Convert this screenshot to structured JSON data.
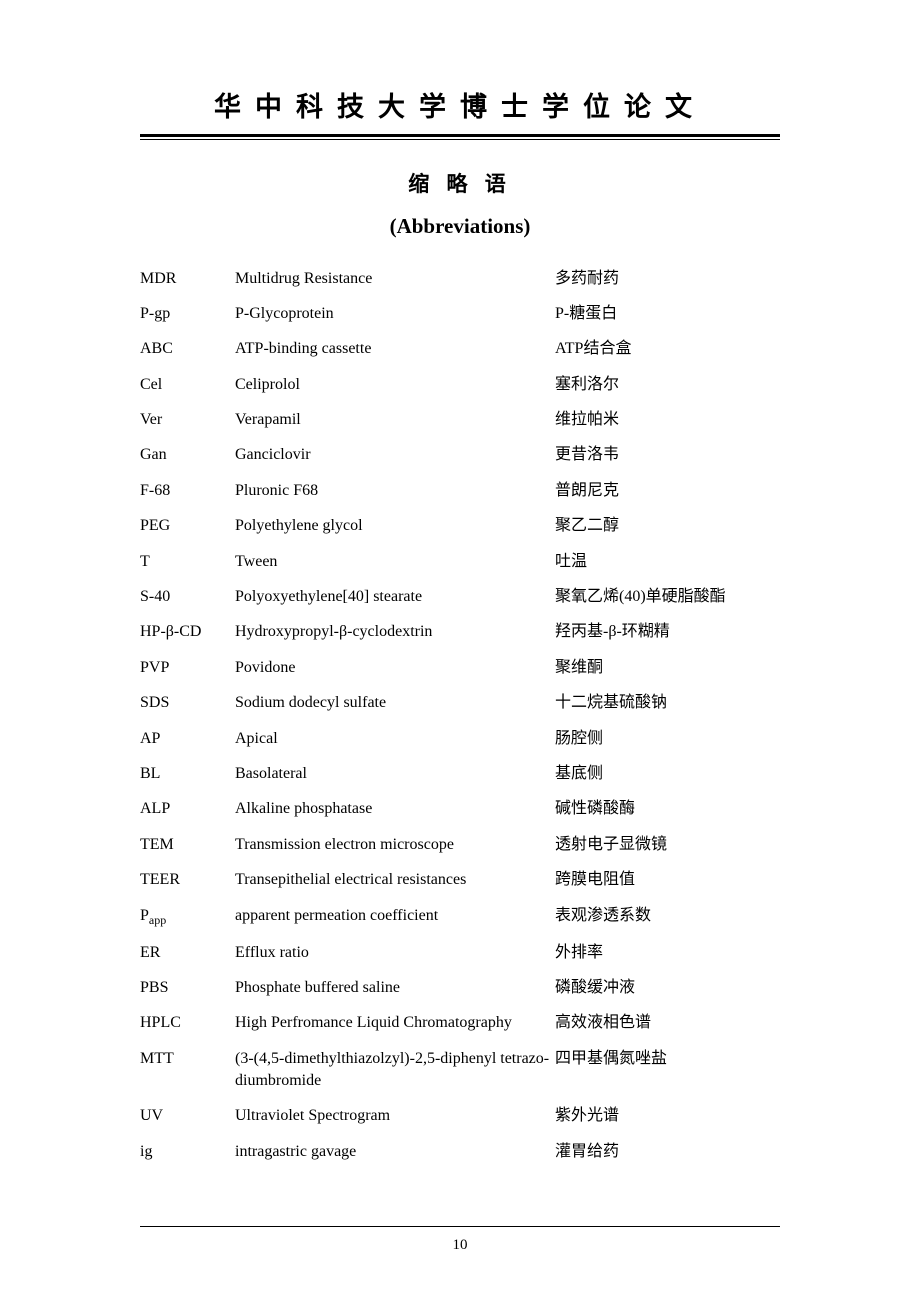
{
  "header": {
    "title": "华中科技大学博士学位论文"
  },
  "section": {
    "title_cn": "缩 略 语",
    "title_en": "(Abbreviations)"
  },
  "abbreviations": [
    {
      "abbr": "MDR",
      "en": "Multidrug Resistance",
      "cn": "多药耐药"
    },
    {
      "abbr": "P-gp",
      "en": "P-Glycoprotein",
      "cn": "P-糖蛋白"
    },
    {
      "abbr": "ABC",
      "en": "ATP-binding cassette",
      "cn": "ATP结合盒"
    },
    {
      "abbr": "Cel",
      "en": "Celiprolol",
      "cn": "塞利洛尔"
    },
    {
      "abbr": "Ver",
      "en": "Verapamil",
      "cn": "维拉帕米"
    },
    {
      "abbr": "Gan",
      "en": "Ganciclovir",
      "cn": "更昔洛韦"
    },
    {
      "abbr": "F-68",
      "en": "Pluronic F68",
      "cn": "普朗尼克"
    },
    {
      "abbr": "PEG",
      "en": "Polyethylene glycol",
      "cn": "聚乙二醇"
    },
    {
      "abbr": "T",
      "en": "Tween",
      "cn": "吐温"
    },
    {
      "abbr": "S-40",
      "en": "Polyoxyethylene[40] stearate",
      "cn": "聚氧乙烯(40)单硬脂酸酯"
    },
    {
      "abbr": "HP-β-CD",
      "en": "Hydroxypropyl-β-cyclodextrin",
      "cn": "羟丙基-β-环糊精"
    },
    {
      "abbr": "PVP",
      "en": "Povidone",
      "cn": "聚维酮"
    },
    {
      "abbr": "SDS",
      "en": "Sodium dodecyl sulfate",
      "cn": "十二烷基硫酸钠"
    },
    {
      "abbr": "AP",
      "en": "Apical",
      "cn": "肠腔侧"
    },
    {
      "abbr": "BL",
      "en": "Basolateral",
      "cn": "基底侧"
    },
    {
      "abbr": "ALP",
      "en": "Alkaline phosphatase",
      "cn": "碱性磷酸酶"
    },
    {
      "abbr": "TEM",
      "en": "Transmission electron microscope",
      "cn": "透射电子显微镜"
    },
    {
      "abbr": "TEER",
      "en": "Transepithelial electrical resistances",
      "cn": "跨膜电阻值"
    },
    {
      "abbr": "P",
      "abbr_sub": "app",
      "en": "apparent permeation coefficient",
      "cn": "表观渗透系数"
    },
    {
      "abbr": "ER",
      "en": "Efflux ratio",
      "cn": "外排率"
    },
    {
      "abbr": "PBS",
      "en": "Phosphate buffered saline",
      "cn": "磷酸缓冲液"
    },
    {
      "abbr": "HPLC",
      "en": "High Perfromance Liquid Chromatography",
      "cn": "高效液相色谱"
    },
    {
      "abbr": "MTT",
      "en": "(3-(4,5-dimethylthiazolzyl)-2,5-diphenyl tetrazo-diumbromide",
      "cn": "四甲基偶氮唑盐"
    },
    {
      "abbr": "UV",
      "en": "Ultraviolet Spectrogram",
      "cn": "紫外光谱"
    },
    {
      "abbr": "ig",
      "en": "intragastric gavage",
      "cn": "灌胃给药"
    }
  ],
  "page_number": "10"
}
